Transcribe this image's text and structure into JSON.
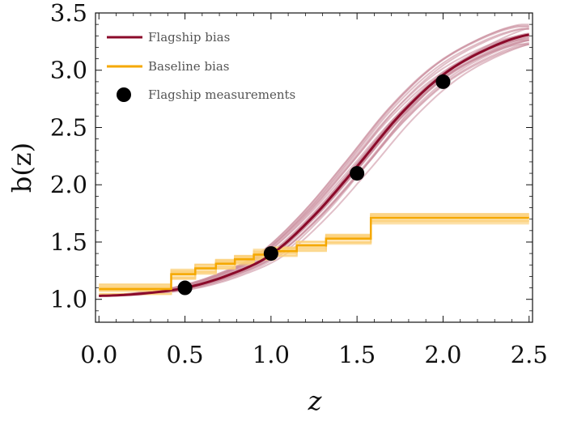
{
  "chart_data": {
    "type": "line",
    "xlabel": "z",
    "ylabel": "b(z)",
    "xlim": [
      -0.02,
      2.52
    ],
    "ylim": [
      0.8,
      3.5
    ],
    "xticks": [
      "0.0",
      "0.5",
      "1.0",
      "1.5",
      "2.0",
      "2.5"
    ],
    "yticks": [
      "1.0",
      "1.5",
      "2.0",
      "2.5",
      "3.0",
      "3.5"
    ],
    "legend": {
      "placement": "top-left"
    },
    "series": [
      {
        "name": "Flagship bias",
        "kind": "sigmoid-band",
        "color": "#8b0a2a",
        "band_color": "#c98a9a",
        "x": [
          0.0,
          0.25,
          0.5,
          0.75,
          1.0,
          1.25,
          1.5,
          1.75,
          2.0,
          2.25,
          2.5
        ],
        "values": [
          1.03,
          1.05,
          1.1,
          1.21,
          1.39,
          1.73,
          2.16,
          2.61,
          2.96,
          3.18,
          3.31
        ]
      },
      {
        "name": "Baseline bias",
        "kind": "step-band",
        "color": "#f5a800",
        "band_color": "#fbd17a",
        "bin_edges": [
          0.0,
          0.42,
          0.56,
          0.68,
          0.79,
          0.9,
          1.02,
          1.15,
          1.32,
          1.58,
          2.5
        ],
        "values": [
          1.09,
          1.22,
          1.27,
          1.31,
          1.35,
          1.39,
          1.42,
          1.47,
          1.53,
          1.71
        ]
      },
      {
        "name": "Flagship measurements",
        "kind": "points",
        "color": "#000000",
        "x": [
          0.5,
          1.0,
          1.5,
          2.0
        ],
        "values": [
          1.1,
          1.4,
          2.1,
          2.9
        ]
      }
    ]
  }
}
